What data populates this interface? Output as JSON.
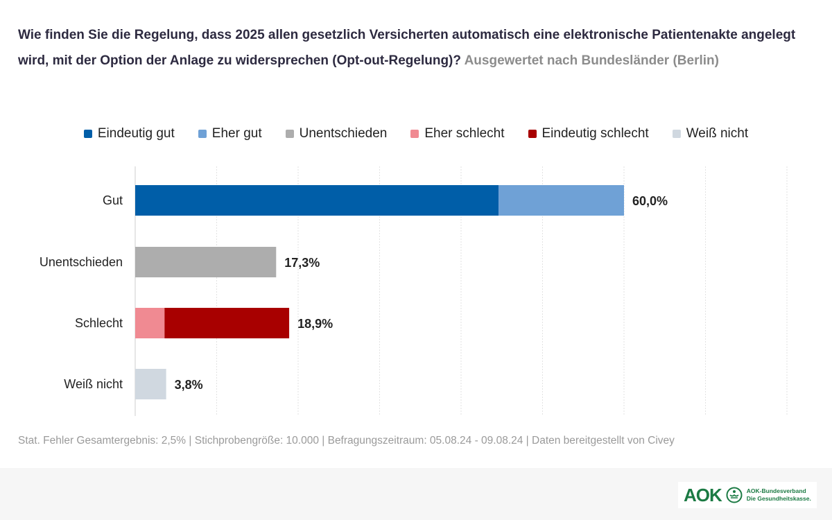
{
  "title": {
    "main": "Wie finden Sie die Regelung, dass 2025 allen gesetzlich Versicherten automatisch eine elektronische Patientenakte angelegt wird, mit der Option der Anlage zu widersprechen (Opt-out-Regelung)?",
    "sub": "Ausgewertet nach Bundesländer (Berlin)"
  },
  "footer_note": "Stat. Fehler Gesamtergebnis: 2,5% | Stichprobengröße: 10.000 | Befragungszeitraum: 05.08.24 - 09.08.24 | Daten bereitgestellt von Civey",
  "logo": {
    "brand": "AOK",
    "line1": "AOK-Bundesverband",
    "line2": "Die Gesundheitskasse."
  },
  "chart_data": {
    "type": "bar",
    "orientation": "horizontal",
    "stacked": true,
    "categories": [
      "Gut",
      "Unentschieden",
      "Schlecht",
      "Weiß nicht"
    ],
    "series": [
      {
        "name": "Eindeutig gut",
        "color": "#005ea8",
        "values": [
          44.6,
          0,
          0,
          0
        ]
      },
      {
        "name": "Eher gut",
        "color": "#6fa1d6",
        "values": [
          15.4,
          0,
          0,
          0
        ]
      },
      {
        "name": "Unentschieden",
        "color": "#adadad",
        "values": [
          0,
          17.3,
          0,
          0
        ]
      },
      {
        "name": "Eher schlecht",
        "color": "#f08a92",
        "values": [
          0,
          0,
          3.6,
          0
        ]
      },
      {
        "name": "Eindeutig schlecht",
        "color": "#a80000",
        "values": [
          0,
          0,
          15.3,
          0
        ]
      },
      {
        "name": "Weiß nicht",
        "color": "#d0d8e0",
        "values": [
          0,
          0,
          0,
          3.8
        ]
      }
    ],
    "totals": [
      "60,0%",
      "17,3%",
      "18,9%",
      "3,8%"
    ],
    "xlim": [
      0,
      80
    ],
    "grid": true,
    "legend": "top"
  }
}
